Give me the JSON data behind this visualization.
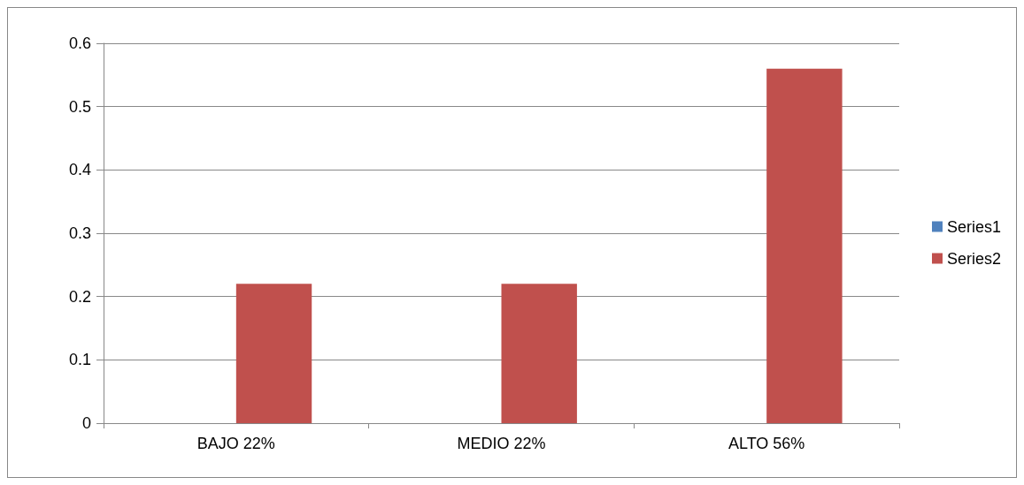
{
  "chart_data": {
    "type": "bar",
    "categories": [
      "BAJO 22%",
      "MEDIO 22%",
      "ALTO 56%"
    ],
    "series": [
      {
        "name": "Series1",
        "color": "#4f81bd",
        "values": [
          null,
          null,
          null
        ]
      },
      {
        "name": "Series2",
        "color": "#c0504d",
        "values": [
          0.22,
          0.22,
          0.56
        ]
      }
    ],
    "ylim": [
      0,
      0.6
    ],
    "yticks": [
      0,
      0.1,
      0.2,
      0.3,
      0.4,
      0.5,
      0.6
    ],
    "grid": "y",
    "legend": "right"
  }
}
